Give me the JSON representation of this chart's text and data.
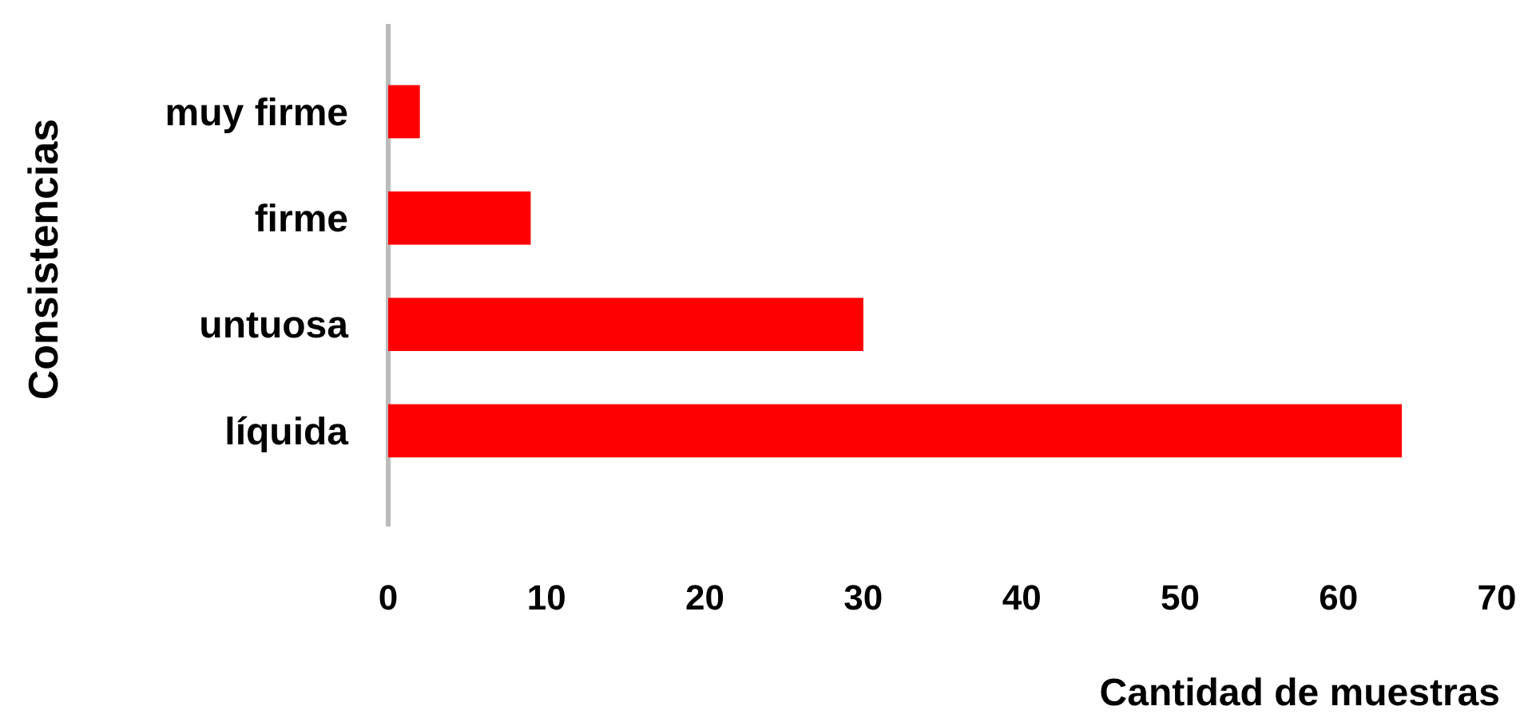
{
  "chart_data": {
    "type": "bar",
    "orientation": "horizontal",
    "xlabel": "Cantidad de muestras",
    "ylabel": "Consistencias",
    "categories": [
      "muy firme",
      "firme",
      "untuosa",
      "líquida"
    ],
    "values": [
      2,
      9,
      30,
      64
    ],
    "color": "#ff0000",
    "xlim": [
      0,
      70
    ],
    "xticks": [
      0,
      10,
      20,
      30,
      40,
      50,
      60,
      70
    ],
    "grid": false
  }
}
